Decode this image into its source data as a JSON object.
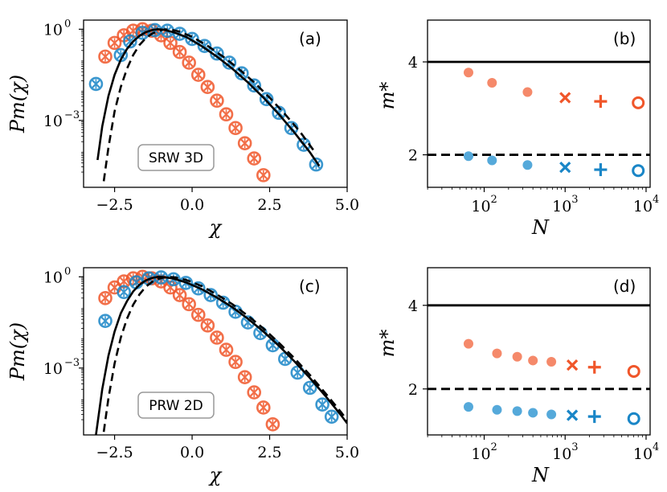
{
  "colors": {
    "orange": "#F0562A",
    "blue": "#1A86C7",
    "orangeLight": "#F5896A",
    "blueLight": "#55A9DA"
  },
  "chart_data": [
    {
      "type": "scatter",
      "panel": "(a)",
      "box_label": "SRW 3D",
      "xlabel": "χ",
      "ylabel": "Pm(χ)",
      "xlim": [
        -3.5,
        5.0
      ],
      "ylim_log10": [
        -5.2,
        0.3
      ],
      "xticks": [
        "−2.5",
        "0.0",
        "2.5",
        "5.0"
      ],
      "yticks": [
        "10",
        "10"
      ],
      "ytick_exps": [
        "0",
        "−3"
      ],
      "series": [
        {
          "name": "orange",
          "color": "orange",
          "x": [
            -2.8,
            -2.5,
            -2.2,
            -1.9,
            -1.6,
            -1.3,
            -1.0,
            -0.7,
            -0.4,
            -0.1,
            0.2,
            0.5,
            0.8,
            1.1,
            1.4,
            1.7,
            2.0,
            2.3
          ],
          "log10y": [
            -0.9,
            -0.45,
            -0.2,
            -0.05,
            0.0,
            -0.05,
            -0.2,
            -0.45,
            -0.75,
            -1.1,
            -1.5,
            -1.9,
            -2.35,
            -2.8,
            -3.25,
            -3.75,
            -4.25,
            -4.8
          ]
        },
        {
          "name": "blue",
          "color": "blue",
          "x": [
            -3.1,
            -2.3,
            -2.0,
            -1.6,
            -1.2,
            -0.8,
            -0.4,
            0.0,
            0.4,
            0.8,
            1.2,
            1.6,
            2.0,
            2.4,
            2.8,
            3.2,
            3.6,
            4.0
          ],
          "log10y": [
            -1.8,
            -0.85,
            -0.4,
            -0.12,
            -0.03,
            -0.05,
            -0.15,
            -0.32,
            -0.55,
            -0.8,
            -1.1,
            -1.45,
            -1.85,
            -2.3,
            -2.75,
            -3.25,
            -3.8,
            -4.45
          ]
        }
      ],
      "curves": [
        {
          "style": "solid",
          "x": [
            -3.05,
            -2.9,
            -2.7,
            -2.5,
            -2.3,
            -2.1,
            -1.9,
            -1.7,
            -1.5,
            -1.3,
            -1.1,
            -0.9,
            -0.6,
            -0.2,
            0.3,
            0.8,
            1.3,
            1.8,
            2.3,
            2.8,
            3.3,
            3.8,
            4.1
          ],
          "log10y": [
            -4.3,
            -3.2,
            -2.2,
            -1.5,
            -1.0,
            -0.65,
            -0.4,
            -0.22,
            -0.1,
            -0.03,
            0.0,
            -0.02,
            -0.1,
            -0.25,
            -0.55,
            -0.9,
            -1.3,
            -1.75,
            -2.25,
            -2.8,
            -3.4,
            -4.05,
            -4.5
          ]
        },
        {
          "style": "dashed",
          "x": [
            -2.85,
            -2.7,
            -2.5,
            -2.3,
            -2.1,
            -1.9,
            -1.7,
            -1.5,
            -1.3,
            -1.1,
            -0.9,
            -0.7,
            -0.4,
            0.0,
            0.5,
            1.0,
            1.5,
            2.0,
            2.5,
            3.0,
            3.5,
            4.0
          ],
          "log10y": [
            -5.0,
            -3.9,
            -2.7,
            -1.9,
            -1.3,
            -0.85,
            -0.52,
            -0.3,
            -0.15,
            -0.06,
            -0.01,
            -0.01,
            -0.08,
            -0.25,
            -0.55,
            -0.9,
            -1.3,
            -1.75,
            -2.25,
            -2.8,
            -3.4,
            -4.1
          ]
        }
      ]
    },
    {
      "type": "scatter",
      "panel": "(b)",
      "xlabel": "N",
      "ylabel": "m*",
      "xlim_log10": [
        1.3,
        4.05
      ],
      "ylim": [
        1.3,
        4.9
      ],
      "xticks": [
        "10",
        "10",
        "10"
      ],
      "xtick_exps": [
        "2",
        "3",
        "4"
      ],
      "yticks": [
        "2",
        "4"
      ],
      "hlines": [
        {
          "y": 4,
          "style": "solid"
        },
        {
          "y": 2,
          "style": "dashed"
        }
      ],
      "series": [
        {
          "name": "orange",
          "color": "orange",
          "points": [
            {
              "N": 64,
              "m": 3.77,
              "marker": "dot"
            },
            {
              "N": 125,
              "m": 3.55,
              "marker": "dot"
            },
            {
              "N": 343,
              "m": 3.35,
              "marker": "dot"
            },
            {
              "N": 1000,
              "m": 3.23,
              "marker": "x"
            },
            {
              "N": 2744,
              "m": 3.15,
              "marker": "plus"
            },
            {
              "N": 8000,
              "m": 3.12,
              "marker": "o"
            }
          ]
        },
        {
          "name": "blue",
          "color": "blue",
          "points": [
            {
              "N": 64,
              "m": 1.97,
              "marker": "dot"
            },
            {
              "N": 125,
              "m": 1.88,
              "marker": "dot"
            },
            {
              "N": 343,
              "m": 1.78,
              "marker": "dot"
            },
            {
              "N": 1000,
              "m": 1.73,
              "marker": "x"
            },
            {
              "N": 2744,
              "m": 1.68,
              "marker": "plus"
            },
            {
              "N": 8000,
              "m": 1.66,
              "marker": "o"
            }
          ]
        }
      ]
    },
    {
      "type": "scatter",
      "panel": "(c)",
      "box_label": "PRW 2D",
      "xlabel": "χ",
      "ylabel": "Pm(χ)",
      "xlim": [
        -3.5,
        5.0
      ],
      "ylim_log10": [
        -5.2,
        0.3
      ],
      "xticks": [
        "−2.5",
        "0.0",
        "2.5",
        "5.0"
      ],
      "yticks": [
        "10",
        "10"
      ],
      "ytick_exps": [
        "0",
        "−3"
      ],
      "series": [
        {
          "name": "orange",
          "color": "orange",
          "x": [
            -2.8,
            -2.5,
            -2.2,
            -1.9,
            -1.6,
            -1.3,
            -1.0,
            -0.7,
            -0.4,
            -0.1,
            0.2,
            0.5,
            0.8,
            1.1,
            1.4,
            1.7,
            2.0,
            2.3,
            2.6
          ],
          "log10y": [
            -0.7,
            -0.35,
            -0.15,
            -0.05,
            0.0,
            -0.05,
            -0.15,
            -0.35,
            -0.6,
            -0.9,
            -1.25,
            -1.6,
            -2.0,
            -2.4,
            -2.8,
            -3.3,
            -3.8,
            -4.3,
            -4.85
          ]
        },
        {
          "name": "blue",
          "color": "blue",
          "x": [
            -2.8,
            -2.2,
            -1.8,
            -1.4,
            -1.0,
            -0.6,
            -0.2,
            0.2,
            0.6,
            1.0,
            1.4,
            1.8,
            2.2,
            2.6,
            3.0,
            3.4,
            3.8,
            4.2,
            4.5
          ],
          "log10y": [
            -1.45,
            -0.5,
            -0.18,
            -0.05,
            -0.02,
            -0.08,
            -0.2,
            -0.38,
            -0.6,
            -0.85,
            -1.15,
            -1.5,
            -1.85,
            -2.25,
            -2.7,
            -3.15,
            -3.65,
            -4.2,
            -4.6
          ]
        }
      ],
      "curves": [
        {
          "style": "solid",
          "x": [
            -3.1,
            -2.9,
            -2.7,
            -2.5,
            -2.3,
            -2.1,
            -1.9,
            -1.7,
            -1.5,
            -1.3,
            -1.1,
            -0.9,
            -0.6,
            -0.2,
            0.3,
            0.8,
            1.3,
            1.8,
            2.3,
            2.8,
            3.3,
            3.8,
            4.3,
            4.8,
            5.0
          ],
          "log10y": [
            -5.2,
            -3.7,
            -2.6,
            -1.8,
            -1.2,
            -0.8,
            -0.48,
            -0.26,
            -0.12,
            -0.04,
            0.0,
            -0.01,
            -0.06,
            -0.18,
            -0.4,
            -0.68,
            -1.0,
            -1.38,
            -1.8,
            -2.27,
            -2.78,
            -3.33,
            -3.92,
            -4.55,
            -4.82
          ]
        },
        {
          "style": "dashed",
          "x": [
            -2.85,
            -2.7,
            -2.5,
            -2.3,
            -2.1,
            -1.9,
            -1.7,
            -1.5,
            -1.3,
            -1.1,
            -0.9,
            -0.6,
            -0.2,
            0.3,
            0.8,
            1.3,
            1.8,
            2.3,
            2.8,
            3.3,
            3.8,
            4.3,
            4.8,
            5.0
          ],
          "log10y": [
            -5.1,
            -4.0,
            -2.85,
            -2.0,
            -1.38,
            -0.92,
            -0.58,
            -0.33,
            -0.17,
            -0.07,
            -0.02,
            -0.01,
            -0.1,
            -0.3,
            -0.58,
            -0.9,
            -1.28,
            -1.7,
            -2.17,
            -2.68,
            -3.23,
            -3.83,
            -4.45,
            -4.72
          ]
        }
      ]
    },
    {
      "type": "scatter",
      "panel": "(d)",
      "xlabel": "N",
      "ylabel": "m*",
      "xlim_log10": [
        1.3,
        4.05
      ],
      "ylim": [
        0.9,
        4.9
      ],
      "xticks": [
        "10",
        "10",
        "10"
      ],
      "xtick_exps": [
        "2",
        "3",
        "4"
      ],
      "yticks": [
        "2",
        "4"
      ],
      "hlines": [
        {
          "y": 4,
          "style": "solid"
        },
        {
          "y": 2,
          "style": "dashed"
        }
      ],
      "series": [
        {
          "name": "orange",
          "color": "orange",
          "points": [
            {
              "N": 64,
              "m": 3.08,
              "marker": "dot"
            },
            {
              "N": 144,
              "m": 2.85,
              "marker": "dot"
            },
            {
              "N": 256,
              "m": 2.77,
              "marker": "dot"
            },
            {
              "N": 400,
              "m": 2.68,
              "marker": "dot"
            },
            {
              "N": 676,
              "m": 2.65,
              "marker": "dot"
            },
            {
              "N": 1225,
              "m": 2.57,
              "marker": "x"
            },
            {
              "N": 2304,
              "m": 2.52,
              "marker": "plus"
            },
            {
              "N": 7056,
              "m": 2.42,
              "marker": "o"
            }
          ]
        },
        {
          "name": "blue",
          "color": "blue",
          "points": [
            {
              "N": 64,
              "m": 1.57,
              "marker": "dot"
            },
            {
              "N": 144,
              "m": 1.5,
              "marker": "dot"
            },
            {
              "N": 256,
              "m": 1.47,
              "marker": "dot"
            },
            {
              "N": 400,
              "m": 1.43,
              "marker": "dot"
            },
            {
              "N": 676,
              "m": 1.39,
              "marker": "dot"
            },
            {
              "N": 1225,
              "m": 1.37,
              "marker": "x"
            },
            {
              "N": 2304,
              "m": 1.34,
              "marker": "plus"
            },
            {
              "N": 7056,
              "m": 1.29,
              "marker": "o"
            }
          ]
        }
      ]
    }
  ]
}
